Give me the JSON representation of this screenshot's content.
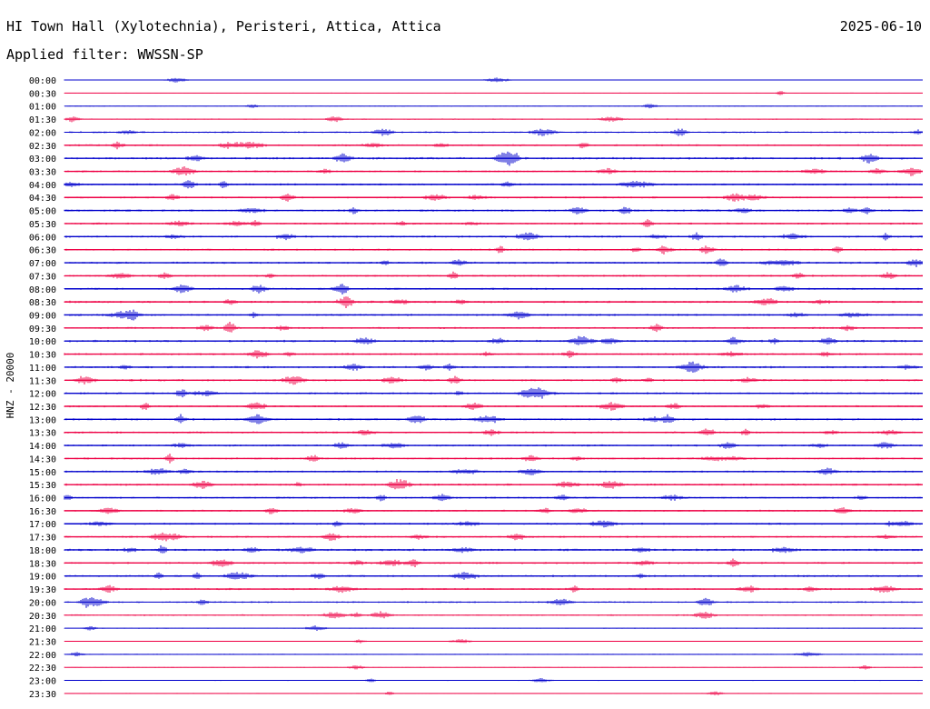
{
  "header": {
    "station": "HI Town Hall (Xylotechnia), Peristeri, Attica, Attica",
    "date": "2025-06-10",
    "filter_label": "Applied filter:",
    "filter_value": "WWSSN-SP"
  },
  "chart_data": {
    "type": "line",
    "subtype": "helicorder",
    "ylabel": "HNZ - 20000",
    "xlabel": "",
    "line_colors": [
      "#0000cc",
      "#ee0044"
    ],
    "rows": [
      "00:00",
      "00:30",
      "01:00",
      "01:30",
      "02:00",
      "02:30",
      "03:00",
      "03:30",
      "04:00",
      "04:30",
      "05:00",
      "05:30",
      "06:00",
      "06:30",
      "07:00",
      "07:30",
      "08:00",
      "08:30",
      "09:00",
      "09:30",
      "10:00",
      "10:30",
      "11:00",
      "11:30",
      "12:00",
      "12:30",
      "13:00",
      "13:30",
      "14:00",
      "14:30",
      "15:00",
      "15:30",
      "16:00",
      "16:30",
      "17:00",
      "17:30",
      "18:00",
      "18:30",
      "19:00",
      "19:30",
      "20:00",
      "20:30",
      "21:00",
      "21:30",
      "22:00",
      "22:30",
      "23:00",
      "23:30"
    ],
    "activity": [
      0.15,
      0.1,
      0.15,
      0.3,
      0.5,
      0.55,
      0.7,
      0.55,
      0.6,
      0.55,
      0.65,
      0.6,
      0.65,
      0.55,
      0.6,
      0.55,
      0.6,
      0.65,
      0.6,
      0.55,
      0.7,
      0.6,
      0.65,
      0.65,
      0.6,
      0.55,
      0.65,
      0.6,
      0.55,
      0.6,
      0.6,
      0.65,
      0.55,
      0.55,
      0.6,
      0.55,
      0.7,
      0.6,
      0.6,
      0.55,
      0.5,
      0.4,
      0.2,
      0.15,
      0.2,
      0.15,
      0.15,
      0.15
    ],
    "legend": false,
    "grid": false
  }
}
